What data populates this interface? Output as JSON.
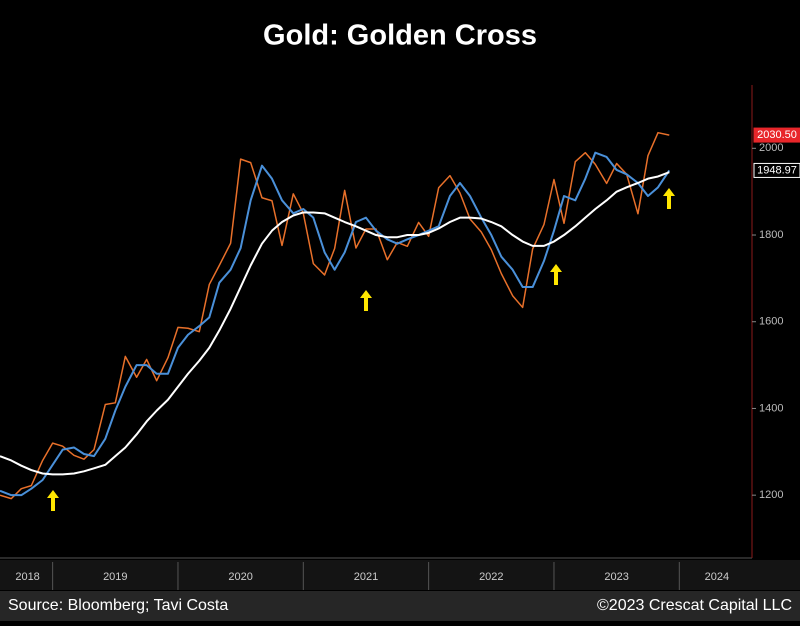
{
  "chart_data": {
    "type": "line",
    "title": "Gold: Golden Cross",
    "source": "Source: Bloomberg; Tavi Costa",
    "copyright": "©2023 Crescat Capital LLC",
    "x": [
      2018.58,
      2018.67,
      2018.75,
      2018.83,
      2018.92,
      2019.0,
      2019.08,
      2019.17,
      2019.25,
      2019.33,
      2019.42,
      2019.5,
      2019.58,
      2019.67,
      2019.75,
      2019.83,
      2019.92,
      2020.0,
      2020.08,
      2020.17,
      2020.25,
      2020.33,
      2020.42,
      2020.5,
      2020.58,
      2020.67,
      2020.75,
      2020.83,
      2020.92,
      2021.0,
      2021.08,
      2021.17,
      2021.25,
      2021.33,
      2021.42,
      2021.5,
      2021.58,
      2021.67,
      2021.75,
      2021.83,
      2021.92,
      2022.0,
      2022.08,
      2022.17,
      2022.25,
      2022.33,
      2022.42,
      2022.5,
      2022.58,
      2022.67,
      2022.75,
      2022.83,
      2022.92,
      2023.0,
      2023.08,
      2023.17,
      2023.25,
      2023.33,
      2023.42,
      2023.5,
      2023.58,
      2023.67,
      2023.75,
      2023.83,
      2023.92
    ],
    "series": [
      {
        "color": "#e8702a",
        "values": [
          1200,
          1192,
          1215,
          1222,
          1280,
          1320,
          1313,
          1292,
          1283,
          1305,
          1409,
          1413,
          1520,
          1472,
          1513,
          1464,
          1517,
          1587,
          1585,
          1577,
          1686,
          1730,
          1781,
          1975,
          1967,
          1886,
          1879,
          1776,
          1895,
          1850,
          1734,
          1708,
          1769,
          1903,
          1770,
          1814,
          1814,
          1743,
          1783,
          1774,
          1829,
          1797,
          1909,
          1937,
          1897,
          1837,
          1807,
          1766,
          1711,
          1660,
          1633,
          1768,
          1824,
          1928,
          1827,
          1969,
          1990,
          1963,
          1919,
          1965,
          1940,
          1849,
          1983,
          2036,
          2030.5
        ]
      },
      {
        "color": "#4a90d9",
        "values": [
          1210,
          1200,
          1200,
          1215,
          1235,
          1270,
          1305,
          1310,
          1295,
          1290,
          1330,
          1395,
          1450,
          1500,
          1500,
          1480,
          1480,
          1540,
          1570,
          1590,
          1610,
          1690,
          1720,
          1770,
          1880,
          1960,
          1930,
          1880,
          1850,
          1860,
          1840,
          1760,
          1720,
          1760,
          1830,
          1840,
          1810,
          1790,
          1780,
          1790,
          1800,
          1810,
          1820,
          1890,
          1920,
          1890,
          1840,
          1800,
          1750,
          1720,
          1680,
          1680,
          1740,
          1810,
          1890,
          1880,
          1930,
          1990,
          1980,
          1950,
          1940,
          1920,
          1890,
          1910,
          1948.97
        ]
      },
      {
        "color": "#ffffff",
        "values": [
          1290,
          1280,
          1268,
          1258,
          1250,
          1248,
          1248,
          1250,
          1255,
          1262,
          1270,
          1290,
          1310,
          1340,
          1370,
          1395,
          1420,
          1450,
          1480,
          1510,
          1540,
          1580,
          1630,
          1680,
          1730,
          1780,
          1810,
          1830,
          1845,
          1852,
          1852,
          1850,
          1840,
          1830,
          1820,
          1810,
          1800,
          1795,
          1795,
          1800,
          1800,
          1805,
          1815,
          1830,
          1840,
          1840,
          1838,
          1830,
          1820,
          1800,
          1785,
          1775,
          1775,
          1785,
          1800,
          1820,
          1840,
          1860,
          1880,
          1900,
          1910,
          1920,
          1930,
          1935,
          1945
        ]
      }
    ],
    "annotations": [
      {
        "value": 2030.5,
        "label": "2030.50",
        "color": "#e8262a"
      },
      {
        "value": 1948.97,
        "label": "1948.97",
        "color": "#ffffff"
      }
    ],
    "xlim": [
      2018.58,
      2024.58
    ],
    "xticks": [
      {
        "value": 2018.8,
        "label": "2018"
      },
      {
        "value": 2019.5,
        "label": "2019"
      },
      {
        "value": 2020.5,
        "label": "2020"
      },
      {
        "value": 2021.5,
        "label": "2021"
      },
      {
        "value": 2022.5,
        "label": "2022"
      },
      {
        "value": 2023.5,
        "label": "2023"
      },
      {
        "value": 2024.3,
        "label": "2024"
      }
    ],
    "ylim": [
      1062,
      2146
    ],
    "yticks": [
      1200,
      1400,
      1600,
      1800,
      2000
    ]
  }
}
